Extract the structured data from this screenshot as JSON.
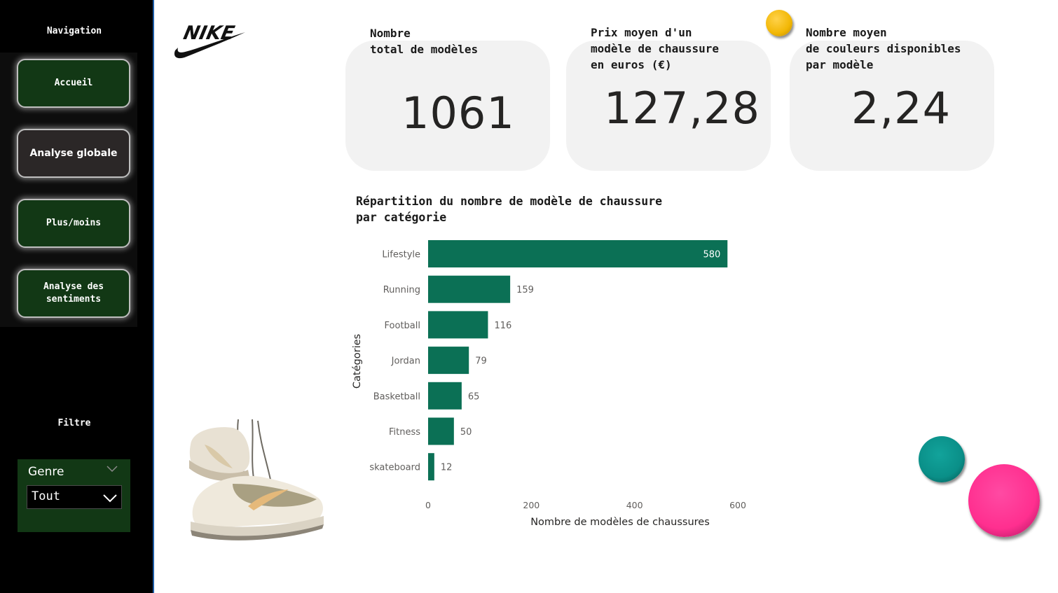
{
  "sidebar": {
    "title": "Navigation",
    "buttons": [
      {
        "label": "Accueil",
        "active": false
      },
      {
        "label": "Analyse globale",
        "active": true
      },
      {
        "label": "Plus/moins",
        "active": false
      },
      {
        "label": "Analyse des sentiments",
        "active": false
      }
    ],
    "filter_title": "Filtre",
    "filter": {
      "label": "Genre",
      "selected": "Tout"
    }
  },
  "logo": {
    "text": "NIKE"
  },
  "kpis": [
    {
      "title": "Nombre\ntotal de modèles",
      "value": "1061"
    },
    {
      "title": "Prix moyen d'un\nmodèle de chaussure\nen euros (€)",
      "value": "127,28"
    },
    {
      "title": "Nombre moyen\nde couleurs disponibles\npar modèle",
      "value": "2,24"
    }
  ],
  "decor": {
    "circle_colors": [
      "#f2b705",
      "#0a8f88",
      "#ff2f8f"
    ],
    "shoe_image": "sneakers-image"
  },
  "chart_data": {
    "type": "bar",
    "orientation": "horizontal",
    "title": "Répartition du nombre de modèle de chaussure\npar catégorie",
    "xlabel": "Nombre de modèles de chaussures",
    "ylabel": "Catégories",
    "categories": [
      "Lifestyle",
      "Running",
      "Football",
      "Jordan",
      "Basketball",
      "Fitness",
      "skateboard"
    ],
    "values": [
      580,
      159,
      116,
      79,
      65,
      50,
      12
    ],
    "xlim": [
      0,
      600
    ],
    "xticks": [
      0,
      200,
      400,
      600
    ],
    "bar_color": "#0b7055",
    "grid": false
  }
}
